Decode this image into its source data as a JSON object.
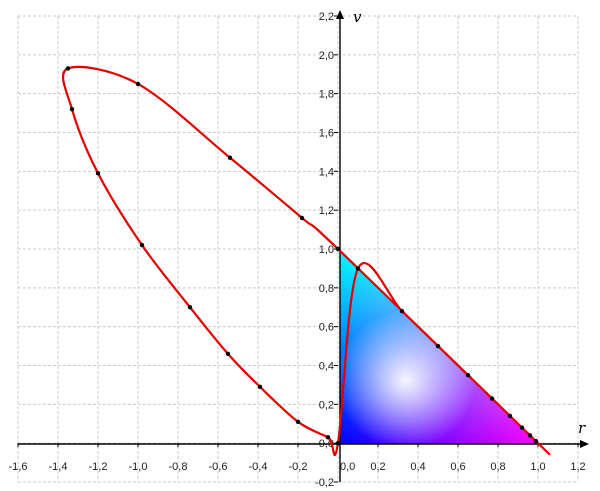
{
  "chart_data": {
    "type": "scatter",
    "title": "",
    "xlabel": "r",
    "ylabel": "v",
    "xlim": [
      -1.6,
      1.2
    ],
    "ylim": [
      -0.2,
      2.2
    ],
    "grid": true,
    "x_ticks": [
      "-1,6",
      "-1,4",
      "-1,2",
      "-1,0",
      "-0,8",
      "-0,6",
      "-0,4",
      "-0,2",
      "0,0",
      "0,2",
      "0,4",
      "0,6",
      "0,8",
      "1,0",
      "1,2"
    ],
    "y_ticks": [
      "-0,2",
      "0,0",
      "0,2",
      "0,4",
      "0,6",
      "0,8",
      "1,0",
      "1,2",
      "1,4",
      "1,6",
      "1,8",
      "2,0",
      "2,2"
    ],
    "curve_color": "#e00000",
    "marker_color": "#000000",
    "gamut_triangle": {
      "vertices": {
        "green": [
          0,
          1
        ],
        "red": [
          1,
          0
        ],
        "blue": [
          0,
          0
        ]
      },
      "white_point": [
        0.333,
        0.333
      ]
    },
    "series": [
      {
        "points": [
          {
            "x": 0.0,
            "y": 1.0
          },
          {
            "x": -0.18,
            "y": 1.16
          },
          {
            "x": -0.54,
            "y": 1.47
          },
          {
            "x": -1.0,
            "y": 1.85
          },
          {
            "x": -1.35,
            "y": 1.93
          },
          {
            "x": -1.33,
            "y": 1.72
          },
          {
            "x": -1.2,
            "y": 1.39
          },
          {
            "x": -0.98,
            "y": 1.02
          },
          {
            "x": -0.74,
            "y": 0.7
          },
          {
            "x": -0.55,
            "y": 0.46
          },
          {
            "x": -0.39,
            "y": 0.29
          },
          {
            "x": -0.2,
            "y": 0.11
          },
          {
            "x": -0.05,
            "y": 0.03
          },
          {
            "x": 0.0,
            "y": 0.0
          },
          {
            "x": 0.1,
            "y": 0.9
          },
          {
            "x": 0.32,
            "y": 0.68
          },
          {
            "x": 0.5,
            "y": 0.5
          },
          {
            "x": 0.65,
            "y": 0.35
          },
          {
            "x": 0.77,
            "y": 0.23
          },
          {
            "x": 0.86,
            "y": 0.14
          },
          {
            "x": 0.92,
            "y": 0.08
          },
          {
            "x": 0.96,
            "y": 0.04
          },
          {
            "x": 0.99,
            "y": 0.01
          }
        ]
      }
    ]
  }
}
